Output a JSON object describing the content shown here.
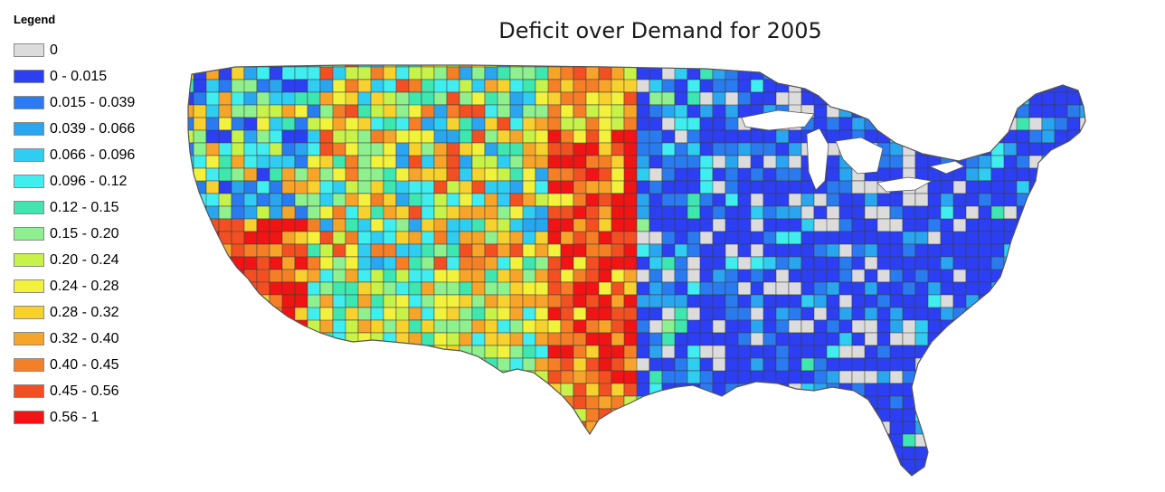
{
  "map": {
    "title": "Deficit over Demand for 2005",
    "region": "contiguous-united-states-counties"
  },
  "legend": {
    "title": "Legend",
    "classes": [
      {
        "label": "0",
        "color": "#dcdcdc"
      },
      {
        "label": "0 - 0.015",
        "color": "#2c3ff2"
      },
      {
        "label": "0.015 - 0.039",
        "color": "#2a7bf0"
      },
      {
        "label": "0.039 - 0.066",
        "color": "#2aa6f0"
      },
      {
        "label": "0.066 - 0.096",
        "color": "#30cdf2"
      },
      {
        "label": "0.096 - 0.12",
        "color": "#40eef0"
      },
      {
        "label": "0.12 - 0.15",
        "color": "#3ee6b0"
      },
      {
        "label": "0.15 - 0.20",
        "color": "#8ef08e"
      },
      {
        "label": "0.20 - 0.24",
        "color": "#c7f24a"
      },
      {
        "label": "0.24 - 0.28",
        "color": "#f2f23c"
      },
      {
        "label": "0.28 - 0.32",
        "color": "#f7d22e"
      },
      {
        "label": "0.32 - 0.40",
        "color": "#f7a52a"
      },
      {
        "label": "0.40 - 0.45",
        "color": "#f57f26"
      },
      {
        "label": "0.45 - 0.56",
        "color": "#f25022"
      },
      {
        "label": "0.56 - 1",
        "color": "#f01414"
      }
    ]
  }
}
